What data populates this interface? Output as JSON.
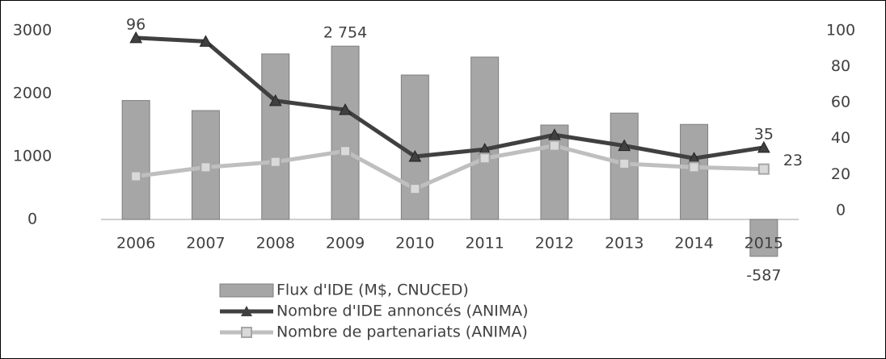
{
  "chart_data": {
    "type": "bar-line",
    "categories": [
      "2006",
      "2007",
      "2008",
      "2009",
      "2010",
      "2011",
      "2012",
      "2013",
      "2014",
      "2015"
    ],
    "series": [
      {
        "name": "Flux d'IDE (M$, CNUCED)",
        "type": "bar",
        "color": "#a6a6a6",
        "values": [
          1890,
          1730,
          2630,
          2754,
          2295,
          2580,
          1500,
          1690,
          1510,
          -587
        ],
        "value_labels": [
          null,
          null,
          null,
          "2 754",
          null,
          null,
          null,
          null,
          null,
          "-587"
        ]
      },
      {
        "name": "Nombre d'IDE annoncés (ANIMA)",
        "type": "line",
        "axis": "y2",
        "color": "#404040",
        "marker": "triangle",
        "values": [
          96,
          94,
          61,
          56,
          30,
          34,
          42,
          36,
          29,
          35
        ],
        "value_labels": [
          "96",
          null,
          null,
          null,
          null,
          null,
          null,
          null,
          null,
          "35"
        ]
      },
      {
        "name": "Nombre de partenariats (ANIMA)",
        "type": "line",
        "axis": "y2",
        "color": "#bfbfbf",
        "marker": "square",
        "values": [
          19,
          24,
          27,
          33,
          12,
          29,
          36,
          26,
          24,
          23
        ],
        "value_labels": [
          null,
          null,
          null,
          null,
          null,
          null,
          null,
          null,
          null,
          "23"
        ]
      }
    ],
    "ylim": [
      -1000,
      3000
    ],
    "yticks": [
      0,
      1000,
      2000,
      3000
    ],
    "y2lim": [
      -40,
      100
    ],
    "y2ticks": [
      0,
      20,
      40,
      60,
      80,
      100
    ],
    "grid": false,
    "legend": "bottom"
  }
}
